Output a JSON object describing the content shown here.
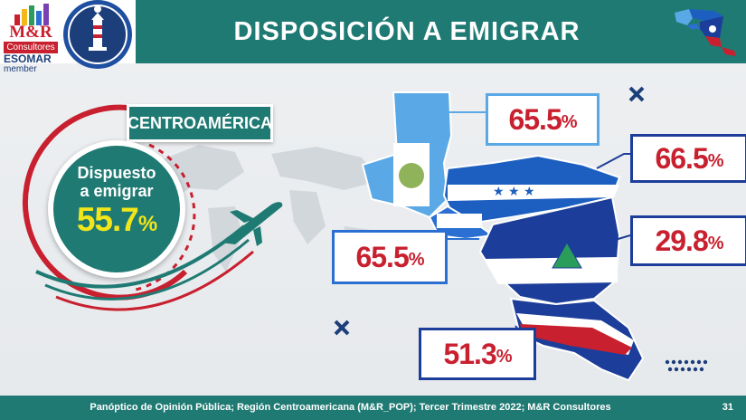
{
  "header": {
    "title": "DISPOSICIÓN A EMIGRAR",
    "logo_main": "M&R",
    "logo_sub": "Consultores",
    "logo_esomar": "ESOMAR",
    "logo_member": "member"
  },
  "summary": {
    "region_label": "CENTROAMÉRICA",
    "line1": "Dispuesto",
    "line2": "a emigrar",
    "value": "55.7",
    "unit": "%"
  },
  "countries": [
    {
      "value": "65.5",
      "unit": "%"
    },
    {
      "value": "66.5",
      "unit": "%"
    },
    {
      "value": "29.8",
      "unit": "%"
    },
    {
      "value": "65.5",
      "unit": "%"
    },
    {
      "value": "51.3",
      "unit": "%"
    }
  ],
  "footer": {
    "source": "Panóptico de Opinión Pública; Región Centroamericana (M&R_POP); Tercer Trimestre 2022; M&R Consultores",
    "page": "31"
  },
  "colors": {
    "teal": "#1f7a73",
    "red": "#c8202f",
    "yellow": "#f2e61b",
    "blue": "#1c3e9a"
  }
}
